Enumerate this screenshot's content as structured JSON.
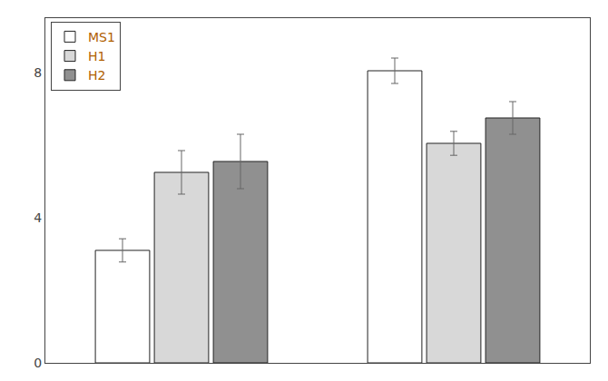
{
  "chart_data": {
    "type": "bar",
    "categories": [
      null,
      null
    ],
    "series": [
      {
        "name": "MS1",
        "color": "white",
        "values": [
          3.1,
          8.05
        ],
        "errors": [
          0.32,
          0.35
        ]
      },
      {
        "name": "H1",
        "color": "#d8d8d8",
        "values": [
          5.25,
          6.05
        ],
        "errors": [
          0.6,
          0.33
        ]
      },
      {
        "name": "H2",
        "color": "#909090",
        "values": [
          5.55,
          6.75
        ],
        "errors": [
          0.75,
          0.45
        ]
      }
    ],
    "ylim": [
      0,
      9.5
    ],
    "yticks": [
      0,
      4,
      8
    ],
    "grid": false,
    "legend": "upper left",
    "tick_labels": "y"
  }
}
